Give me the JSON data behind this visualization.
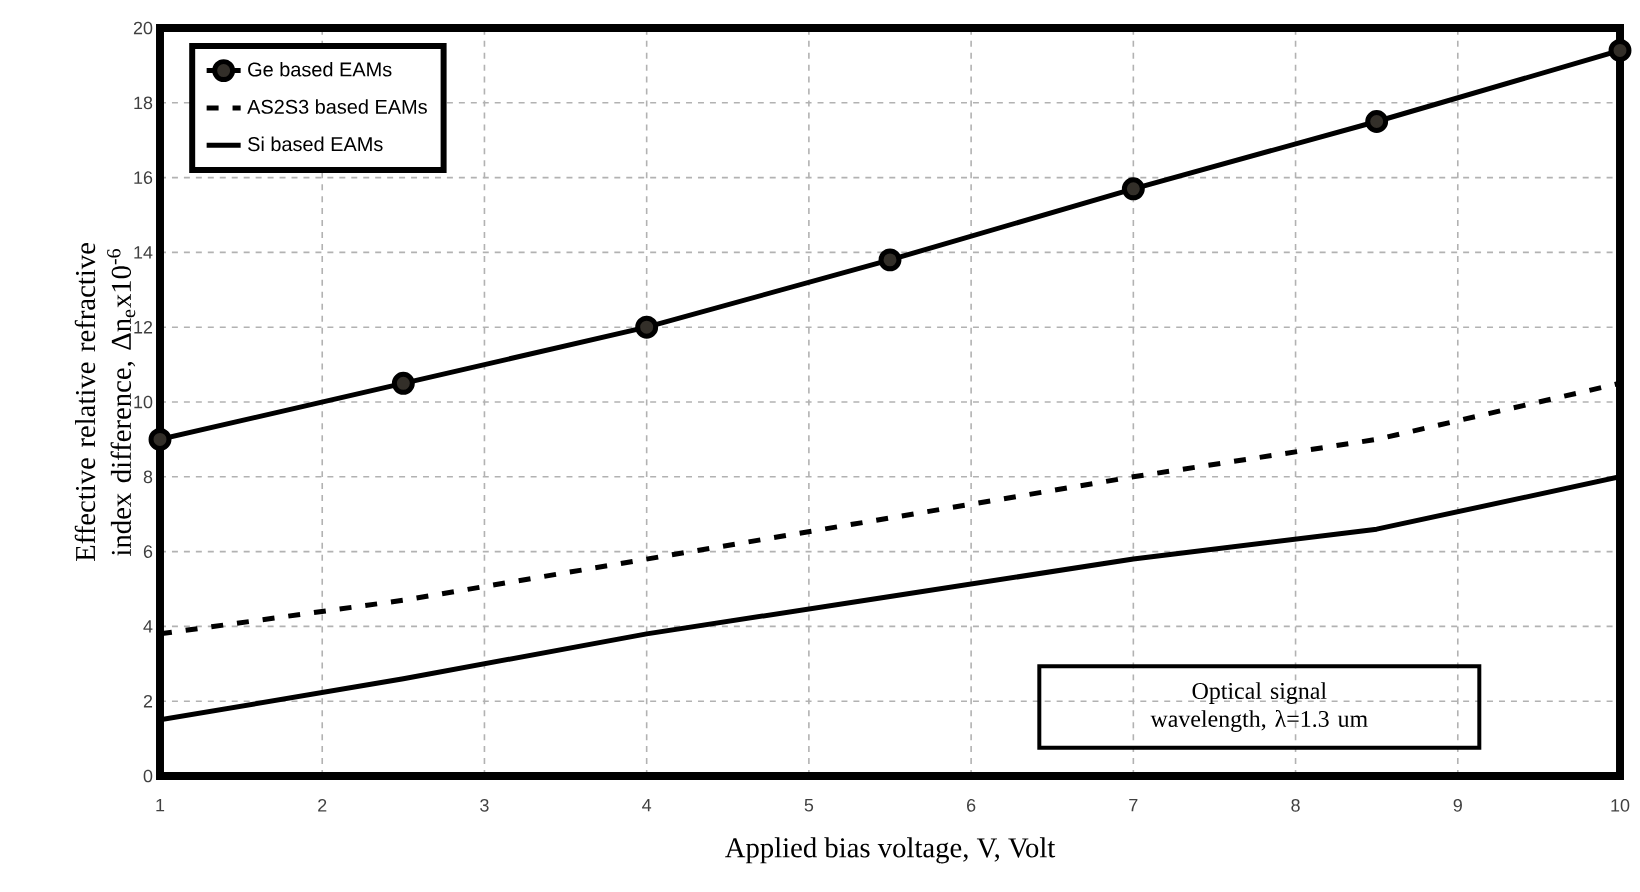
{
  "chart_data": {
    "type": "line",
    "xlabel": "Applied bias voltage, V, Volt",
    "ylabel": "Effective relative refractive index difference, Δn$_{e}$x10$^{-6}$",
    "x": [
      1,
      2.5,
      4,
      5.5,
      7,
      8.5,
      10
    ],
    "series": [
      {
        "name": "Ge based EAMs",
        "color": "#000000",
        "marker": "circle",
        "line_style": "solid",
        "values": [
          9,
          10.5,
          12,
          13.8,
          15.7,
          17.5,
          19.4
        ]
      },
      {
        "name": "AS2S3 based EAMs",
        "color": "#000000",
        "marker": "none",
        "line_style": "dashed",
        "values": [
          3.8,
          4.7,
          5.8,
          6.9,
          8,
          9,
          10.5
        ]
      },
      {
        "name": "Si based EAMs",
        "color": "#000000",
        "marker": "none",
        "line_style": "solid",
        "values": [
          1.5,
          2.6,
          3.8,
          4.8,
          5.8,
          6.6,
          8
        ]
      }
    ],
    "xlim": [
      1,
      10
    ],
    "ylim": [
      0,
      20
    ],
    "xticks": [
      1,
      2,
      3,
      4,
      5,
      6,
      7,
      8,
      9,
      10
    ],
    "yticks": [
      0,
      2,
      4,
      6,
      8,
      10,
      12,
      14,
      16,
      18,
      20
    ],
    "grid": true,
    "legend": "top left",
    "annotations": [
      "Optical signal wavelength, λ=1.3 um"
    ]
  }
}
